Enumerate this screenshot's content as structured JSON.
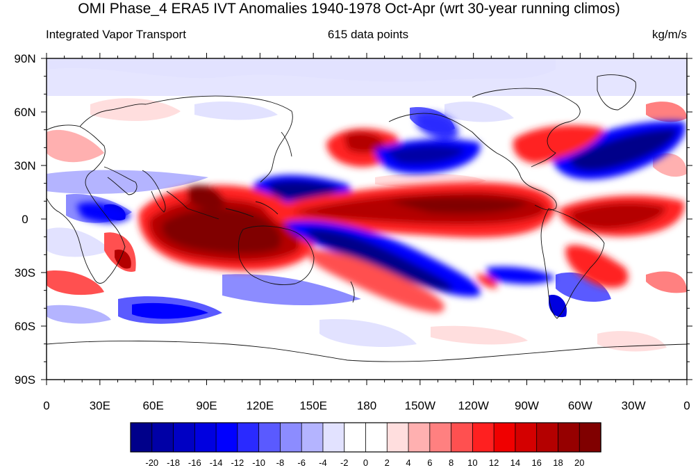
{
  "title": "OMI Phase_4 ERA5 IVT Anomalies 1940-1978 Oct-Apr (wrt 30-year running climos)",
  "subtitle_left": "Integrated Vapor Transport",
  "subtitle_center": "615 data points",
  "subtitle_right": "kg/m/s",
  "y_ticks": [
    "90N",
    "60N",
    "30N",
    "0",
    "30S",
    "60S",
    "90S"
  ],
  "x_ticks": [
    "0",
    "30E",
    "60E",
    "90E",
    "120E",
    "150E",
    "180",
    "150W",
    "120W",
    "90W",
    "60W",
    "30W",
    "0"
  ],
  "colorbar": {
    "labels": [
      "-20",
      "-18",
      "-16",
      "-14",
      "-12",
      "-10",
      "-8",
      "-6",
      "-4",
      "-2",
      "0",
      "2",
      "4",
      "6",
      "8",
      "10",
      "12",
      "14",
      "16",
      "18",
      "20"
    ],
    "colors": [
      "#00008a",
      "#0000a6",
      "#0000c4",
      "#0000e0",
      "#0000ff",
      "#2a2aff",
      "#5a5aff",
      "#8c8cff",
      "#b4b4ff",
      "#e2e2ff",
      "#ffffff",
      "#ffffff",
      "#ffdede",
      "#ffb0b0",
      "#ff8080",
      "#ff5050",
      "#ff2020",
      "#f00000",
      "#d40000",
      "#b40000",
      "#960000",
      "#800000"
    ]
  },
  "map": {
    "projection": "cylindrical equidistant",
    "lon_range": [
      0,
      360
    ],
    "lat_range": [
      -90,
      90
    ],
    "units": "kg/m/s"
  }
}
